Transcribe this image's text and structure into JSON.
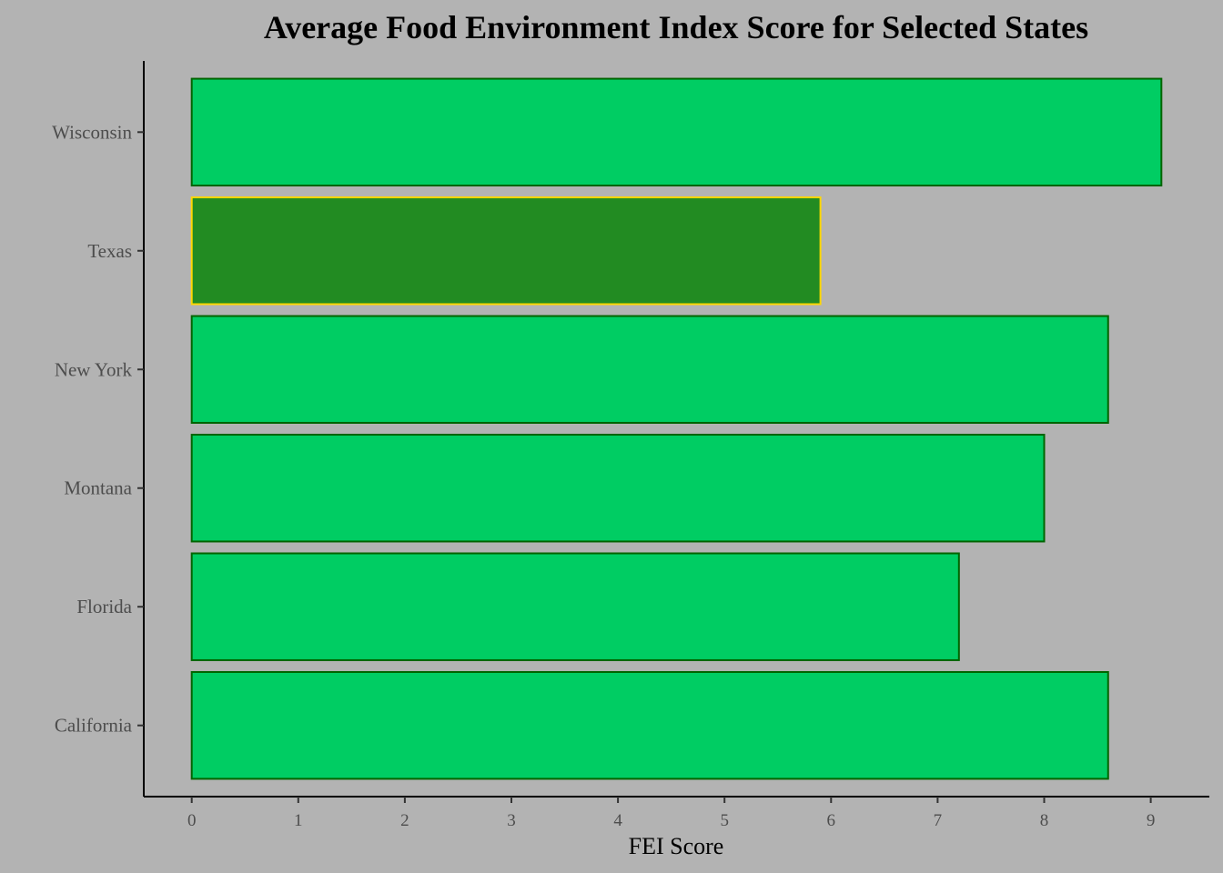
{
  "chart_data": {
    "type": "bar",
    "orientation": "horizontal",
    "title": "Average Food Environment Index Score for Selected States",
    "xlabel": "FEI Score",
    "ylabel": "",
    "categories": [
      "California",
      "Florida",
      "Montana",
      "New York",
      "Texas",
      "Wisconsin"
    ],
    "values": [
      8.6,
      7.2,
      8.0,
      8.6,
      5.9,
      9.1
    ],
    "xlim": [
      -0.45,
      9.55
    ],
    "xticks": [
      "0",
      "1",
      "2",
      "3",
      "4",
      "5",
      "6",
      "7",
      "8",
      "9"
    ],
    "grid": false,
    "legend": "none",
    "highlight_category": "Texas",
    "colors": {
      "background": "#b3b3b3",
      "bar_fill": "#00cd63",
      "bar_outline": "#006400",
      "highlight_fill": "#228b22",
      "highlight_outline": "#ffd700",
      "axis_line": "#000000",
      "tick_text": "#4d4d4d"
    }
  }
}
